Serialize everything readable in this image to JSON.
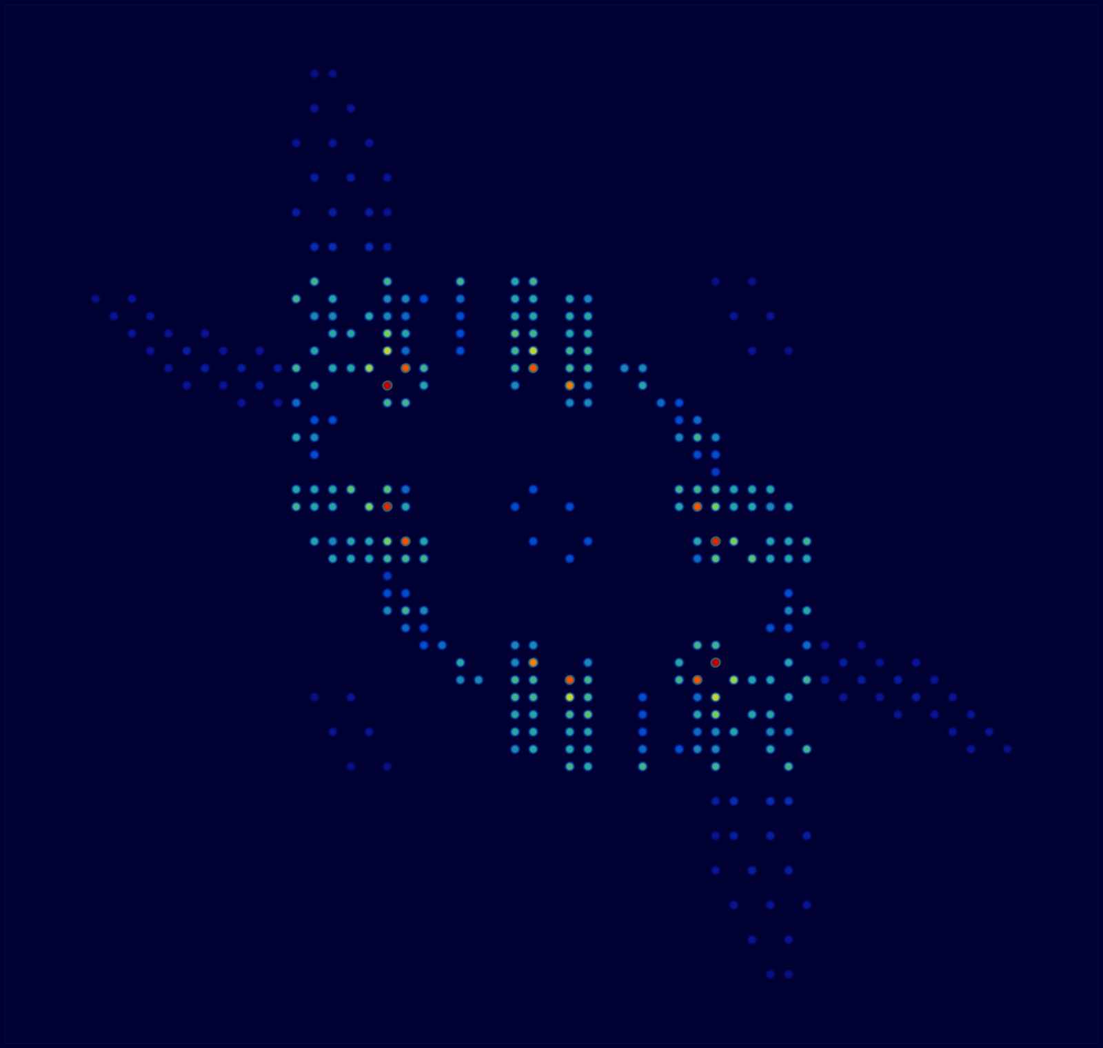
{
  "chart_data": {
    "type": "heatmap",
    "xlim": [
      -30,
      30
    ],
    "ylim": [
      -30,
      30
    ],
    "grid": false,
    "tick_labels": false,
    "cells": [
      [
        -13,
        14,
        0.5
      ],
      [
        -9,
        14,
        0.5
      ],
      [
        -5,
        14,
        0.5
      ],
      [
        -2,
        14,
        0.45
      ],
      [
        -1,
        14,
        0.5
      ],
      [
        -14,
        13,
        0.5
      ],
      [
        -12,
        13,
        0.45
      ],
      [
        -9,
        13,
        0.4
      ],
      [
        -8,
        13,
        0.4
      ],
      [
        -7,
        13,
        0.3
      ],
      [
        -5,
        13,
        0.35
      ],
      [
        -2,
        13,
        0.45
      ],
      [
        -1,
        13,
        0.45
      ],
      [
        1,
        13,
        0.45
      ],
      [
        2,
        13,
        0.4
      ],
      [
        -13,
        12,
        0.4
      ],
      [
        -12,
        12,
        0.4
      ],
      [
        -10,
        12,
        0.45
      ],
      [
        -9,
        12,
        0.4
      ],
      [
        -8,
        12,
        0.35
      ],
      [
        -5,
        12,
        0.3
      ],
      [
        -2,
        12,
        0.45
      ],
      [
        -1,
        12,
        0.45
      ],
      [
        1,
        12,
        0.45
      ],
      [
        2,
        12,
        0.45
      ],
      [
        -12,
        11,
        0.45
      ],
      [
        -11,
        11,
        0.45
      ],
      [
        -9,
        11,
        0.6
      ],
      [
        -8,
        11,
        0.45
      ],
      [
        -5,
        11,
        0.3
      ],
      [
        -2,
        11,
        0.55
      ],
      [
        -1,
        11,
        0.5
      ],
      [
        1,
        11,
        0.45
      ],
      [
        2,
        11,
        0.45
      ],
      [
        -13,
        10,
        0.45
      ],
      [
        -9,
        10,
        0.7
      ],
      [
        -8,
        10,
        0.35
      ],
      [
        -5,
        10,
        0.3
      ],
      [
        -2,
        10,
        0.5
      ],
      [
        -1,
        10,
        0.7
      ],
      [
        1,
        10,
        0.5
      ],
      [
        2,
        10,
        0.5
      ],
      [
        -14,
        9,
        0.5
      ],
      [
        -12,
        9,
        0.45
      ],
      [
        -11,
        9,
        0.45
      ],
      [
        -10,
        9,
        0.65
      ],
      [
        -8,
        9,
        0.9
      ],
      [
        -7,
        9,
        0.5
      ],
      [
        -2,
        9,
        0.5
      ],
      [
        -1,
        9,
        0.9
      ],
      [
        1,
        9,
        0.5
      ],
      [
        2,
        9,
        0.5
      ],
      [
        4,
        9,
        0.4
      ],
      [
        5,
        9,
        0.4
      ],
      [
        -13,
        8,
        0.45
      ],
      [
        -9,
        8,
        1
      ],
      [
        -7,
        8,
        0.45
      ],
      [
        -2,
        8,
        0.4
      ],
      [
        1,
        8,
        0.85
      ],
      [
        2,
        8,
        0.4
      ],
      [
        5,
        8,
        0.45
      ],
      [
        -14,
        7,
        0.35
      ],
      [
        -9,
        7,
        0.5
      ],
      [
        -8,
        7,
        0.5
      ],
      [
        1,
        7,
        0.4
      ],
      [
        2,
        7,
        0.4
      ],
      [
        6,
        7,
        0.35
      ],
      [
        7,
        7,
        0.3
      ],
      [
        -13,
        6,
        0.3
      ],
      [
        -12,
        6,
        0.3
      ],
      [
        7,
        6,
        0.3
      ],
      [
        8,
        6,
        0.35
      ],
      [
        -14,
        5,
        0.45
      ],
      [
        -13,
        5,
        0.4
      ],
      [
        7,
        5,
        0.4
      ],
      [
        8,
        5,
        0.5
      ],
      [
        9,
        5,
        0.4
      ],
      [
        -13,
        4,
        0.3
      ],
      [
        8,
        4,
        0.3
      ],
      [
        9,
        4,
        0.3
      ],
      [
        9,
        3,
        0.25
      ],
      [
        -14,
        2,
        0.45
      ],
      [
        -13,
        2,
        0.45
      ],
      [
        -12,
        2,
        0.45
      ],
      [
        -11,
        2,
        0.55
      ],
      [
        -9,
        2,
        0.55
      ],
      [
        -8,
        2,
        0.35
      ],
      [
        -1,
        2,
        0.3
      ],
      [
        7,
        2,
        0.5
      ],
      [
        8,
        2,
        0.5
      ],
      [
        9,
        2,
        0.5
      ],
      [
        10,
        2,
        0.45
      ],
      [
        11,
        2,
        0.45
      ],
      [
        12,
        2,
        0.45
      ],
      [
        -14,
        1,
        0.5
      ],
      [
        -13,
        1,
        0.45
      ],
      [
        -12,
        1,
        0.45
      ],
      [
        -10,
        1,
        0.6
      ],
      [
        -9,
        1,
        0.95
      ],
      [
        -8,
        1,
        0.45
      ],
      [
        -2,
        1,
        0.3
      ],
      [
        1,
        1,
        0.3
      ],
      [
        7,
        1,
        0.45
      ],
      [
        8,
        1,
        0.9
      ],
      [
        9,
        1,
        0.6
      ],
      [
        10,
        1,
        0.45
      ],
      [
        11,
        1,
        0.45
      ],
      [
        12,
        1,
        0.4
      ],
      [
        13,
        1,
        0.45
      ],
      [
        -25,
        13,
        0.1
      ],
      [
        -23,
        13,
        0.12
      ],
      [
        -24,
        12,
        0.12
      ],
      [
        -22,
        12,
        0.12
      ],
      [
        -23,
        11,
        0.12
      ],
      [
        -21,
        11,
        0.12
      ],
      [
        -19,
        11,
        0.12
      ],
      [
        -22,
        10,
        0.12
      ],
      [
        -20,
        10,
        0.15
      ],
      [
        -18,
        10,
        0.12
      ],
      [
        -16,
        10,
        0.12
      ],
      [
        -21,
        9,
        0.12
      ],
      [
        -19,
        9,
        0.15
      ],
      [
        -17,
        9,
        0.15
      ],
      [
        -15,
        9,
        0.15
      ],
      [
        -20,
        8,
        0.12
      ],
      [
        -18,
        8,
        0.12
      ],
      [
        -16,
        8,
        0.15
      ],
      [
        -17,
        7,
        0.12
      ],
      [
        -15,
        7,
        0.12
      ],
      [
        -13,
        26,
        0.1
      ],
      [
        -12,
        26,
        0.1
      ],
      [
        -13,
        24,
        0.12
      ],
      [
        -11,
        24,
        0.12
      ],
      [
        -14,
        22,
        0.12
      ],
      [
        -12,
        22,
        0.12
      ],
      [
        -10,
        22,
        0.12
      ],
      [
        -13,
        20,
        0.15
      ],
      [
        -11,
        20,
        0.15
      ],
      [
        -9,
        20,
        0.12
      ],
      [
        -14,
        18,
        0.15
      ],
      [
        -12,
        18,
        0.15
      ],
      [
        -10,
        18,
        0.15
      ],
      [
        -9,
        18,
        0.12
      ],
      [
        -13,
        16,
        0.2
      ],
      [
        -12,
        16,
        0.2
      ],
      [
        -10,
        16,
        0.2
      ],
      [
        -9,
        16,
        0.15
      ],
      [
        9,
        14,
        0.1
      ],
      [
        11,
        14,
        0.1
      ],
      [
        10,
        12,
        0.12
      ],
      [
        12,
        12,
        0.12
      ],
      [
        11,
        10,
        0.12
      ],
      [
        13,
        10,
        0.1
      ],
      [
        13,
        -14,
        0.5
      ],
      [
        9,
        -14,
        0.5
      ],
      [
        5,
        -14,
        0.5
      ],
      [
        2,
        -14,
        0.45
      ],
      [
        1,
        -14,
        0.5
      ],
      [
        14,
        -13,
        0.5
      ],
      [
        12,
        -13,
        0.45
      ],
      [
        9,
        -13,
        0.4
      ],
      [
        8,
        -13,
        0.4
      ],
      [
        7,
        -13,
        0.3
      ],
      [
        5,
        -13,
        0.35
      ],
      [
        2,
        -13,
        0.45
      ],
      [
        1,
        -13,
        0.45
      ],
      [
        -1,
        -13,
        0.45
      ],
      [
        -2,
        -13,
        0.4
      ],
      [
        13,
        -12,
        0.4
      ],
      [
        12,
        -12,
        0.4
      ],
      [
        10,
        -12,
        0.45
      ],
      [
        9,
        -12,
        0.4
      ],
      [
        8,
        -12,
        0.35
      ],
      [
        5,
        -12,
        0.3
      ],
      [
        2,
        -12,
        0.45
      ],
      [
        1,
        -12,
        0.45
      ],
      [
        -1,
        -12,
        0.45
      ],
      [
        -2,
        -12,
        0.45
      ],
      [
        12,
        -11,
        0.45
      ],
      [
        11,
        -11,
        0.45
      ],
      [
        9,
        -11,
        0.6
      ],
      [
        8,
        -11,
        0.45
      ],
      [
        5,
        -11,
        0.3
      ],
      [
        2,
        -11,
        0.55
      ],
      [
        1,
        -11,
        0.5
      ],
      [
        -1,
        -11,
        0.45
      ],
      [
        -2,
        -11,
        0.45
      ],
      [
        13,
        -10,
        0.45
      ],
      [
        9,
        -10,
        0.7
      ],
      [
        8,
        -10,
        0.35
      ],
      [
        5,
        -10,
        0.3
      ],
      [
        2,
        -10,
        0.5
      ],
      [
        1,
        -10,
        0.7
      ],
      [
        -1,
        -10,
        0.5
      ],
      [
        -2,
        -10,
        0.5
      ],
      [
        14,
        -9,
        0.5
      ],
      [
        12,
        -9,
        0.45
      ],
      [
        11,
        -9,
        0.45
      ],
      [
        10,
        -9,
        0.65
      ],
      [
        8,
        -9,
        0.9
      ],
      [
        7,
        -9,
        0.5
      ],
      [
        2,
        -9,
        0.5
      ],
      [
        1,
        -9,
        0.9
      ],
      [
        -1,
        -9,
        0.5
      ],
      [
        -2,
        -9,
        0.5
      ],
      [
        -4,
        -9,
        0.4
      ],
      [
        -5,
        -9,
        0.4
      ],
      [
        13,
        -8,
        0.45
      ],
      [
        9,
        -8,
        1
      ],
      [
        7,
        -8,
        0.45
      ],
      [
        2,
        -8,
        0.4
      ],
      [
        -1,
        -8,
        0.85
      ],
      [
        -2,
        -8,
        0.4
      ],
      [
        -5,
        -8,
        0.45
      ],
      [
        14,
        -7,
        0.35
      ],
      [
        9,
        -7,
        0.5
      ],
      [
        8,
        -7,
        0.5
      ],
      [
        -1,
        -7,
        0.4
      ],
      [
        -2,
        -7,
        0.4
      ],
      [
        -6,
        -7,
        0.35
      ],
      [
        -7,
        -7,
        0.3
      ],
      [
        13,
        -6,
        0.3
      ],
      [
        12,
        -6,
        0.3
      ],
      [
        -7,
        -6,
        0.3
      ],
      [
        -8,
        -6,
        0.35
      ],
      [
        14,
        -5,
        0.45
      ],
      [
        13,
        -5,
        0.4
      ],
      [
        -7,
        -5,
        0.4
      ],
      [
        -8,
        -5,
        0.5
      ],
      [
        -9,
        -5,
        0.4
      ],
      [
        13,
        -4,
        0.3
      ],
      [
        -8,
        -4,
        0.3
      ],
      [
        -9,
        -4,
        0.3
      ],
      [
        -9,
        -3,
        0.25
      ],
      [
        14,
        -2,
        0.45
      ],
      [
        13,
        -2,
        0.45
      ],
      [
        12,
        -2,
        0.45
      ],
      [
        11,
        -2,
        0.55
      ],
      [
        9,
        -2,
        0.55
      ],
      [
        8,
        -2,
        0.35
      ],
      [
        1,
        -2,
        0.3
      ],
      [
        -7,
        -2,
        0.5
      ],
      [
        -8,
        -2,
        0.5
      ],
      [
        -9,
        -2,
        0.5
      ],
      [
        -10,
        -2,
        0.45
      ],
      [
        -11,
        -2,
        0.45
      ],
      [
        -12,
        -2,
        0.45
      ],
      [
        14,
        -1,
        0.5
      ],
      [
        13,
        -1,
        0.45
      ],
      [
        12,
        -1,
        0.45
      ],
      [
        10,
        -1,
        0.6
      ],
      [
        9,
        -1,
        0.95
      ],
      [
        8,
        -1,
        0.45
      ],
      [
        2,
        -1,
        0.3
      ],
      [
        -1,
        -1,
        0.3
      ],
      [
        -7,
        -1,
        0.45
      ],
      [
        -8,
        -1,
        0.9
      ],
      [
        -9,
        -1,
        0.6
      ],
      [
        -10,
        -1,
        0.45
      ],
      [
        -11,
        -1,
        0.45
      ],
      [
        -12,
        -1,
        0.4
      ],
      [
        -13,
        -1,
        0.45
      ],
      [
        25,
        -13,
        0.1
      ],
      [
        23,
        -13,
        0.12
      ],
      [
        24,
        -12,
        0.12
      ],
      [
        22,
        -12,
        0.12
      ],
      [
        23,
        -11,
        0.12
      ],
      [
        21,
        -11,
        0.12
      ],
      [
        19,
        -11,
        0.12
      ],
      [
        22,
        -10,
        0.12
      ],
      [
        20,
        -10,
        0.15
      ],
      [
        18,
        -10,
        0.12
      ],
      [
        16,
        -10,
        0.12
      ],
      [
        21,
        -9,
        0.12
      ],
      [
        19,
        -9,
        0.15
      ],
      [
        17,
        -9,
        0.15
      ],
      [
        15,
        -9,
        0.15
      ],
      [
        20,
        -8,
        0.12
      ],
      [
        18,
        -8,
        0.12
      ],
      [
        16,
        -8,
        0.15
      ],
      [
        17,
        -7,
        0.12
      ],
      [
        15,
        -7,
        0.12
      ],
      [
        13,
        -26,
        0.1
      ],
      [
        12,
        -26,
        0.1
      ],
      [
        13,
        -24,
        0.12
      ],
      [
        11,
        -24,
        0.12
      ],
      [
        14,
        -22,
        0.12
      ],
      [
        12,
        -22,
        0.12
      ],
      [
        10,
        -22,
        0.12
      ],
      [
        13,
        -20,
        0.15
      ],
      [
        11,
        -20,
        0.15
      ],
      [
        9,
        -20,
        0.12
      ],
      [
        14,
        -18,
        0.15
      ],
      [
        12,
        -18,
        0.15
      ],
      [
        10,
        -18,
        0.15
      ],
      [
        9,
        -18,
        0.12
      ],
      [
        13,
        -16,
        0.2
      ],
      [
        12,
        -16,
        0.2
      ],
      [
        10,
        -16,
        0.2
      ],
      [
        9,
        -16,
        0.15
      ],
      [
        -9,
        -14,
        0.1
      ],
      [
        -11,
        -14,
        0.1
      ],
      [
        -10,
        -12,
        0.12
      ],
      [
        -12,
        -12,
        0.12
      ],
      [
        -11,
        -10,
        0.12
      ],
      [
        -13,
        -10,
        0.1
      ]
    ]
  }
}
